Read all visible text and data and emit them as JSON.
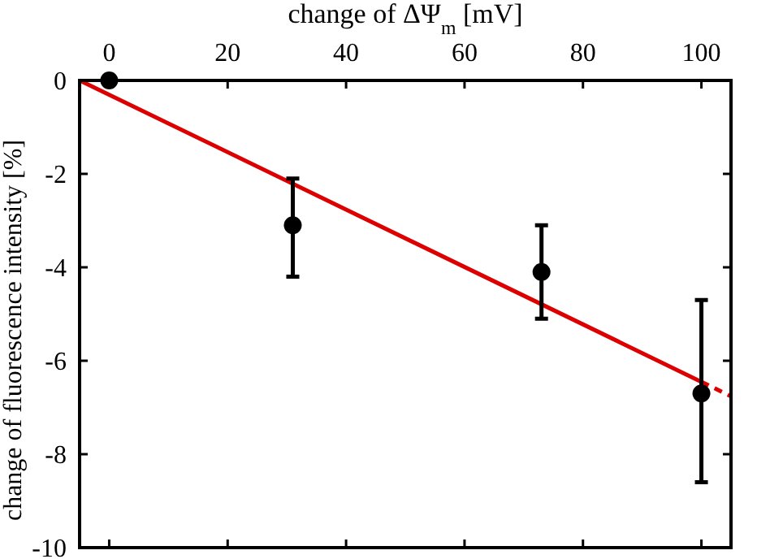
{
  "chart_data": {
    "type": "scatter",
    "xlabel": "change of ΔΨ$_{m}$ [mV]",
    "ylabel": "change of fluorescence intensity [%]",
    "xlim": [
      -5,
      105
    ],
    "ylim": [
      -10,
      0
    ],
    "xticks": [
      0,
      20,
      40,
      60,
      80,
      100
    ],
    "yticks": [
      0,
      -2,
      -4,
      -6,
      -8,
      -10
    ],
    "series": [
      {
        "x": [
          0,
          31,
          73,
          100
        ],
        "values": [
          0,
          -3.1,
          -4.1,
          -6.7
        ],
        "errors": [
          null,
          [
            -4.2,
            -2.1
          ],
          [
            -5.1,
            -3.1
          ],
          [
            -8.6,
            -4.7
          ]
        ],
        "color": "#000000",
        "marker": "circle"
      },
      {
        "type": "line",
        "x": [
          -5,
          100
        ],
        "values": [
          0,
          -6.45
        ],
        "color": "#dd0000",
        "line_style": "solid"
      },
      {
        "type": "line",
        "x": [
          100,
          105
        ],
        "values": [
          -6.45,
          -6.76
        ],
        "color": "#dd0000",
        "line_style": "dashed"
      }
    ]
  }
}
